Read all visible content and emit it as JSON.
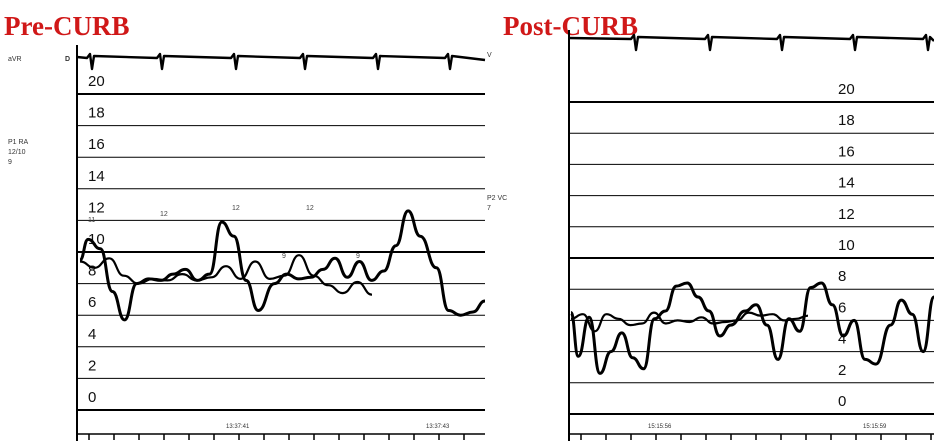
{
  "chart_data": [
    {
      "type": "line",
      "title": "Pre-CURB",
      "title_color": "#d01818",
      "side_labels": {
        "ecg_lead": "aVR",
        "ecg_marker": "D",
        "pressure_channel": "P1 RA",
        "pressure_reading": "12/10",
        "pressure_mean": "9",
        "right_channel": "P2 VC",
        "right_value": "7"
      },
      "yticks": [
        "0",
        "2",
        "4",
        "6",
        "8",
        "10",
        "12",
        "14",
        "16",
        "18",
        "20"
      ],
      "ylim": [
        0,
        20
      ],
      "time_labels": [
        "13:37:41",
        "13:37:43"
      ],
      "peak_labels": [
        "11",
        "12",
        "12",
        "12",
        "9",
        "9"
      ],
      "series": [
        {
          "x": [
            0,
            2,
            5,
            8,
            11,
            14,
            17,
            20,
            23,
            26,
            29,
            32,
            35,
            38,
            41,
            44,
            48,
            51,
            54,
            57,
            60,
            63,
            66,
            69,
            72,
            75,
            78,
            81,
            84,
            88,
            91,
            94,
            97,
            100
          ],
          "values": [
            9.5,
            10.8,
            10.2,
            7.5,
            5.7,
            8.0,
            8.3,
            8.2,
            8.6,
            8.9,
            8.2,
            8.6,
            11.9,
            11.0,
            8.2,
            6.3,
            8.0,
            8.6,
            8.3,
            8.4,
            8.9,
            9.6,
            8.4,
            9.4,
            8.2,
            8.8,
            10.4,
            12.6,
            11.0,
            9.0,
            6.3,
            6.0,
            6.2,
            6.9
          ]
        },
        {
          "x": [
            0,
            5,
            10,
            15,
            20,
            25,
            30,
            35,
            40,
            45,
            50,
            55,
            60,
            65,
            70,
            75,
            80,
            85,
            90,
            95,
            100
          ],
          "values": [
            9.4,
            9.0,
            9.6,
            8.5,
            8.0,
            8.3,
            8.2,
            8.6,
            8.2,
            8.4,
            9.1,
            8.3,
            9.4,
            8.3,
            8.5,
            9.8,
            8.5,
            7.9,
            7.4,
            8.1,
            7.3
          ]
        }
      ]
    },
    {
      "type": "line",
      "title": "Post-CURB",
      "title_color": "#d01818",
      "side_labels": {
        "ecg_lead": "V"
      },
      "yticks": [
        "0",
        "2",
        "4",
        "6",
        "8",
        "10",
        "12",
        "14",
        "16",
        "18",
        "20"
      ],
      "ylim": [
        0,
        20
      ],
      "time_labels": [
        "15:15:56",
        "15:15:59"
      ],
      "series": [
        {
          "x": [
            0,
            2,
            5,
            8,
            11,
            14,
            17,
            20,
            23,
            26,
            29,
            32,
            35,
            38,
            41,
            44,
            48,
            51,
            54,
            57,
            60,
            63,
            66,
            69,
            72,
            75,
            78,
            81,
            84,
            88,
            91,
            94,
            97,
            100
          ],
          "values": [
            6.5,
            3.7,
            6.2,
            2.6,
            4.0,
            5.2,
            3.6,
            2.9,
            6.1,
            6.6,
            8.2,
            8.4,
            7.5,
            6.6,
            5.0,
            5.7,
            6.6,
            7.0,
            5.7,
            3.5,
            6.1,
            5.3,
            8.1,
            8.4,
            7.0,
            5.0,
            6.0,
            3.5,
            3.2,
            5.7,
            7.3,
            6.4,
            4.0,
            7.5
          ]
        },
        {
          "x": [
            0,
            5,
            10,
            15,
            20,
            25,
            30,
            35,
            40,
            45,
            50,
            55,
            60,
            65,
            70,
            75,
            80,
            85,
            90,
            95,
            100
          ],
          "values": [
            6.1,
            6.4,
            5.3,
            6.4,
            6.1,
            5.7,
            5.8,
            6.5,
            5.8,
            6.0,
            5.9,
            6.2,
            5.8,
            5.9,
            6.0,
            6.5,
            6.3,
            6.4,
            6.0,
            6.1,
            6.3
          ]
        }
      ]
    }
  ]
}
